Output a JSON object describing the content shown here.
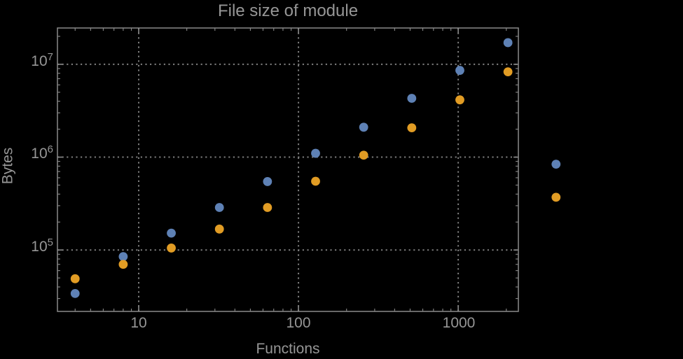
{
  "page": {
    "background_color": "#000000",
    "text_color": "#969696"
  },
  "chart_data": {
    "type": "scatter",
    "title": "File size of module",
    "xlabel": "Functions",
    "ylabel": "Bytes",
    "x_scale": "log",
    "y_scale": "log",
    "grid": true,
    "legend": false,
    "xlim": [
      3.1,
      2380
    ],
    "ylim": [
      21800,
      24600000
    ],
    "x": [
      4,
      8,
      16,
      32,
      64,
      128,
      256,
      512,
      1024,
      2048,
      4096
    ],
    "series": [
      {
        "name": "series-1-blue",
        "color": "#5e81b5",
        "values": [
          34000,
          85000,
          152000,
          287000,
          546000,
          1100000,
          2100000,
          4300000,
          8600000,
          17100000,
          840000
        ]
      },
      {
        "name": "series-2-orange",
        "color": "#e19c24",
        "values": [
          49000,
          70000,
          105000,
          168000,
          287000,
          550000,
          1050000,
          2070000,
          4140000,
          8300000,
          370000
        ]
      }
    ],
    "xticks": [
      {
        "label": "10",
        "value": 10
      },
      {
        "label": "100",
        "value": 100
      },
      {
        "label": "1000",
        "value": 1000
      }
    ],
    "yticks": [
      {
        "base": "10",
        "exp": "5",
        "value": 100000
      },
      {
        "base": "10",
        "exp": "6",
        "value": 1000000
      },
      {
        "base": "10",
        "exp": "7",
        "value": 10000000
      }
    ],
    "frame_color": "#8a8a8a",
    "grid_color": "#7d7d7d",
    "point_radius": 6.4
  }
}
